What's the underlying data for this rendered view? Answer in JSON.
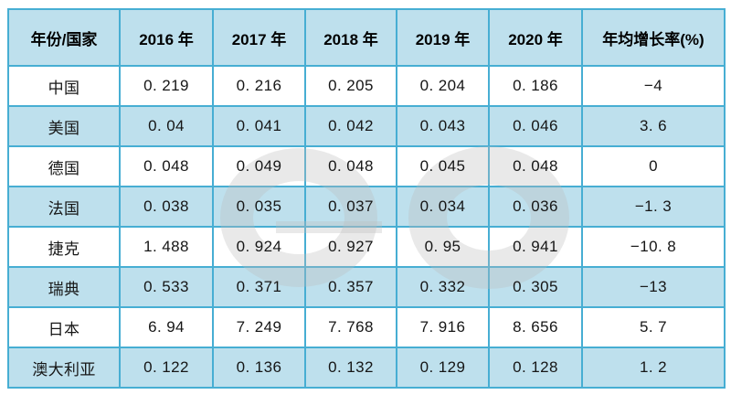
{
  "table": {
    "columns": [
      "年份/国家",
      "2016 年",
      "2017 年",
      "2018 年",
      "2019 年",
      "2020 年",
      "年均增长率(%)"
    ],
    "rows": [
      {
        "label": "中国",
        "values": [
          "0. 219",
          "0. 216",
          "0. 205",
          "0. 204",
          "0. 186",
          "−4"
        ]
      },
      {
        "label": "美国",
        "values": [
          "0. 04",
          "0. 041",
          "0. 042",
          "0. 043",
          "0. 046",
          "3. 6"
        ]
      },
      {
        "label": "德国",
        "values": [
          "0. 048",
          "0. 049",
          "0. 048",
          "0. 045",
          "0. 048",
          "0"
        ]
      },
      {
        "label": "法国",
        "values": [
          "0. 038",
          "0. 035",
          "0. 037",
          "0. 034",
          "0. 036",
          "−1. 3"
        ]
      },
      {
        "label": "捷克",
        "values": [
          "1. 488",
          "0. 924",
          "0. 927",
          "0. 95",
          "0. 941",
          "−10. 8"
        ]
      },
      {
        "label": "瑞典",
        "values": [
          "0. 533",
          "0. 371",
          "0. 357",
          "0. 332",
          "0. 305",
          "−13"
        ]
      },
      {
        "label": "日本",
        "values": [
          "6. 94",
          "7. 249",
          "7. 768",
          "7. 916",
          "8. 656",
          "5. 7"
        ]
      },
      {
        "label": "澳大利亚",
        "values": [
          "0. 122",
          "0. 136",
          "0. 132",
          "0. 129",
          "0. 128",
          "1. 2"
        ]
      }
    ]
  },
  "chart_data": {
    "type": "table",
    "title": "",
    "row_header_label": "年份/国家",
    "categories": [
      "2016",
      "2017",
      "2018",
      "2019",
      "2020"
    ],
    "value_columns": [
      "2016 年",
      "2017 年",
      "2018 年",
      "2019 年",
      "2020 年",
      "年均增长率(%)"
    ],
    "series": [
      {
        "name": "中国",
        "values": [
          0.219,
          0.216,
          0.205,
          0.204,
          0.186
        ],
        "avg_growth_rate_pct": -4
      },
      {
        "name": "美国",
        "values": [
          0.04,
          0.041,
          0.042,
          0.043,
          0.046
        ],
        "avg_growth_rate_pct": 3.6
      },
      {
        "name": "德国",
        "values": [
          0.048,
          0.049,
          0.048,
          0.045,
          0.048
        ],
        "avg_growth_rate_pct": 0
      },
      {
        "name": "法国",
        "values": [
          0.038,
          0.035,
          0.037,
          0.034,
          0.036
        ],
        "avg_growth_rate_pct": -1.3
      },
      {
        "name": "捷克",
        "values": [
          1.488,
          0.924,
          0.927,
          0.95,
          0.941
        ],
        "avg_growth_rate_pct": -10.8
      },
      {
        "name": "瑞典",
        "values": [
          0.533,
          0.371,
          0.357,
          0.332,
          0.305
        ],
        "avg_growth_rate_pct": -13
      },
      {
        "name": "日本",
        "values": [
          6.94,
          7.249,
          7.768,
          7.916,
          8.656
        ],
        "avg_growth_rate_pct": 5.7
      },
      {
        "name": "澳大利亚",
        "values": [
          0.122,
          0.136,
          0.132,
          0.129,
          0.128
        ],
        "avg_growth_rate_pct": 1.2
      }
    ],
    "layout": {
      "header_fill": "alternating rows start with header blue",
      "grid": true,
      "legend": "none"
    }
  },
  "colors": {
    "border": "#47aed3",
    "row_blue": "#bee0ed",
    "row_white": "#ffffff",
    "text": "#161616",
    "watermark": "rgba(188,188,188,0.33)"
  },
  "icons": {
    "watermark": "two-ring-logo-watermark"
  }
}
